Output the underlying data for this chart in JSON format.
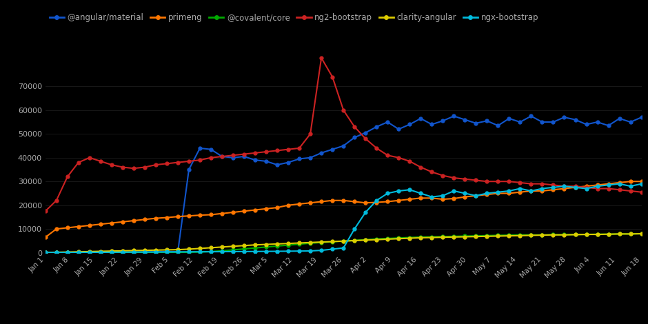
{
  "background_color": "#000000",
  "text_color": "#aaaaaa",
  "grid_color": "#222222",
  "series": [
    {
      "label": "@angular/material",
      "color": "#1155cc",
      "data": [
        100,
        100,
        150,
        150,
        200,
        200,
        250,
        300,
        300,
        300,
        350,
        400,
        400,
        35000,
        44000,
        43500,
        40500,
        40000,
        40500,
        39000,
        38500,
        37000,
        38000,
        39500,
        40000,
        42000,
        43500,
        45000,
        48500,
        50500,
        53000,
        55000,
        52000,
        54000,
        56500,
        54000,
        55500,
        57500,
        56000,
        54500,
        55500,
        53500,
        56500,
        55000,
        57500,
        55000,
        55000,
        57000,
        56000,
        54000,
        55000,
        53500,
        56500,
        55000,
        57000
      ]
    },
    {
      "label": "primeng",
      "color": "#ff7700",
      "data": [
        6500,
        10000,
        10500,
        11000,
        11500,
        12000,
        12500,
        13000,
        13500,
        14000,
        14500,
        14800,
        15200,
        15500,
        15800,
        16000,
        16500,
        17000,
        17500,
        18000,
        18500,
        19000,
        20000,
        20500,
        21000,
        21500,
        22000,
        22000,
        21500,
        21000,
        21200,
        21500,
        22000,
        22500,
        23000,
        23000,
        22500,
        22800,
        23500,
        24000,
        24500,
        25000,
        25000,
        25500,
        26000,
        26000,
        26500,
        27000,
        27500,
        28000,
        28500,
        29000,
        29500,
        30000,
        30000
      ]
    },
    {
      "label": "@covalent/core",
      "color": "#00aa00",
      "data": [
        50,
        60,
        70,
        80,
        90,
        100,
        110,
        120,
        130,
        140,
        150,
        160,
        170,
        200,
        300,
        500,
        800,
        1200,
        1600,
        2000,
        2400,
        2800,
        3200,
        3600,
        4000,
        4300,
        4600,
        4900,
        5200,
        5500,
        5800,
        6000,
        6200,
        6400,
        6600,
        6700,
        6800,
        6900,
        7000,
        7100,
        7200,
        7300,
        7400,
        7500,
        7500,
        7500,
        7600,
        7600,
        7700,
        7700,
        7800,
        7800,
        7900,
        7900,
        8000
      ]
    },
    {
      "label": "ng2-bootstrap",
      "color": "#cc2222",
      "data": [
        17500,
        22000,
        32000,
        38000,
        40000,
        38500,
        37000,
        36000,
        35500,
        36000,
        37000,
        37500,
        38000,
        38500,
        39000,
        40000,
        40500,
        41000,
        41500,
        42000,
        42500,
        43000,
        43500,
        44000,
        50000,
        82000,
        74000,
        60000,
        53000,
        48000,
        44000,
        41000,
        40000,
        38500,
        36000,
        34000,
        32500,
        31500,
        31000,
        30500,
        30000,
        30000,
        30000,
        29500,
        29000,
        29000,
        28500,
        28000,
        28000,
        27500,
        27000,
        27000,
        26500,
        26000,
        25500
      ]
    },
    {
      "label": "clarity-angular",
      "color": "#ddcc00",
      "data": [
        100,
        200,
        300,
        400,
        500,
        600,
        700,
        800,
        900,
        1000,
        1100,
        1200,
        1300,
        1500,
        1800,
        2100,
        2400,
        2700,
        3000,
        3300,
        3500,
        3700,
        3900,
        4100,
        4300,
        4500,
        4700,
        4900,
        5100,
        5300,
        5500,
        5700,
        5900,
        6100,
        6300,
        6400,
        6500,
        6600,
        6700,
        6800,
        6900,
        7000,
        7100,
        7200,
        7300,
        7400,
        7500,
        7500,
        7600,
        7700,
        7700,
        7800,
        7900,
        7900,
        8000
      ]
    },
    {
      "label": "ngx-bootstrap",
      "color": "#00bbdd",
      "data": [
        50,
        80,
        100,
        120,
        150,
        180,
        200,
        220,
        250,
        280,
        300,
        320,
        350,
        380,
        400,
        420,
        450,
        480,
        500,
        530,
        560,
        600,
        640,
        700,
        750,
        1000,
        1500,
        2000,
        10000,
        17000,
        22000,
        25000,
        26000,
        26500,
        25000,
        23500,
        24000,
        26000,
        25000,
        24000,
        25000,
        25500,
        26000,
        27000,
        26000,
        27000,
        27500,
        28000,
        27500,
        27000,
        28000,
        28500,
        29000,
        28000,
        29000
      ]
    }
  ],
  "n_points": 55,
  "x_labels": [
    "Jan 1",
    "Jan 8",
    "Jan 15",
    "Jan 22",
    "Jan 29",
    "Feb 5",
    "Feb 12",
    "Feb 19",
    "Feb 26",
    "Mar 5",
    "Mar 12",
    "Mar 19",
    "Mar 26",
    "Apr 2",
    "Apr 9",
    "Apr 16",
    "Apr 23",
    "Apr 30",
    "May 7",
    "May 14",
    "May 21",
    "May 28",
    "Jun 4",
    "Jun 11",
    "Jun 18"
  ],
  "yticks": [
    0,
    10000,
    20000,
    30000,
    40000,
    50000,
    60000,
    70000
  ],
  "ylim": [
    0,
    90000
  ],
  "figsize": [
    9.4,
    4.7
  ],
  "dpi": 100
}
